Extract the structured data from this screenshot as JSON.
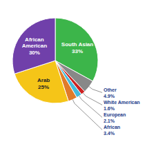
{
  "chart_data": {
    "type": "pie",
    "categories": [
      "South Asian",
      "Other",
      "White American",
      "European",
      "African",
      "Arab",
      "African American"
    ],
    "values": [
      33,
      4.9,
      1.6,
      2.1,
      3.4,
      25,
      30
    ],
    "value_labels": [
      "33%",
      "4.9%",
      "1.6%",
      "2.1%",
      "3.4%",
      "25%",
      "30%"
    ],
    "colors": [
      "#3cb54a",
      "#888888",
      "#cc2222",
      "#44bbdd",
      "#e07b2a",
      "#f5c518",
      "#7040aa"
    ],
    "data_labels": true
  }
}
